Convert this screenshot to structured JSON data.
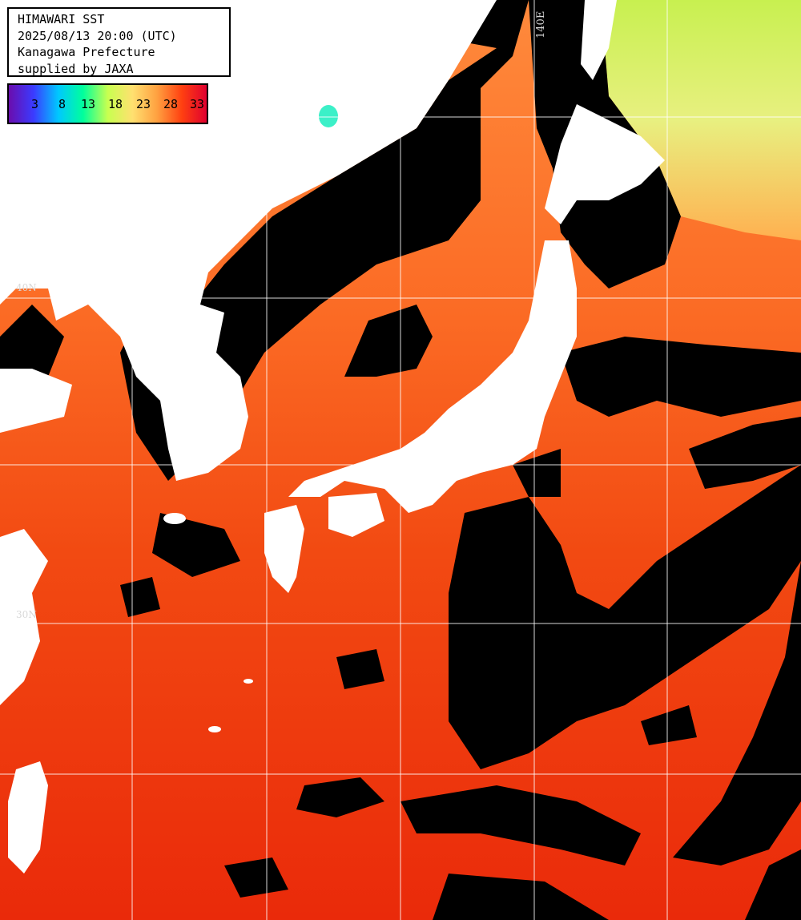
{
  "title": {
    "line1": "HIMAWARI SST",
    "line2": "2025/08/13 20:00 (UTC)",
    "line3": "Kanagawa Prefecture",
    "line4": "supplied by JAXA"
  },
  "color_scale": {
    "ticks": [
      "3",
      "8",
      "13",
      "18",
      "23",
      "28",
      "33"
    ],
    "colors": [
      "#6a0dad",
      "#3b3bff",
      "#00c8ff",
      "#00ff9c",
      "#c8ff50",
      "#ffe070",
      "#ffa040",
      "#ff4010",
      "#e00030"
    ]
  },
  "grid": {
    "lon_label": "140E",
    "lat_labels": [
      "40N",
      "30N"
    ]
  },
  "colors": {
    "land": "#ffffff",
    "cloud": "#000000",
    "warm_sea": "#f24a12",
    "hot_sea": "#ea2a0a",
    "mild_sea": "#ff8a3c",
    "cool_sea": "#d6f05a",
    "grid": "#ffffff"
  }
}
